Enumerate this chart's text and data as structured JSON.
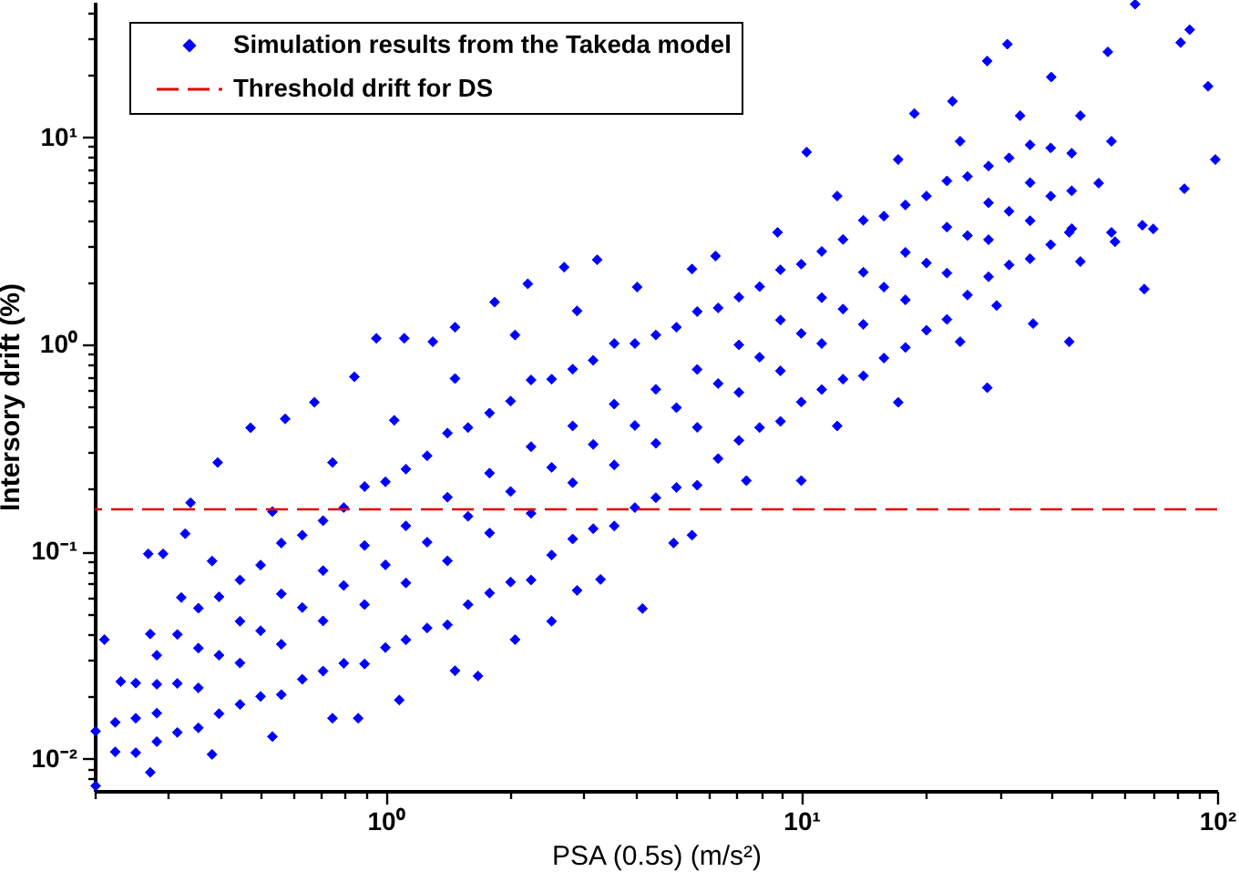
{
  "chart_data": {
    "type": "scatter",
    "xlabel": "PSA (0.5s) (m/s²)",
    "ylabel": "Intersory drift (%)",
    "log": "xy",
    "grid": false,
    "legend": "top left",
    "marker": "diamond",
    "xlim": [
      0.2,
      100
    ],
    "ylim": [
      0.007,
      45
    ],
    "xticks": [
      {
        "value": 0.2,
        "label": null
      },
      {
        "value": 0.3,
        "label": null
      },
      {
        "value": 0.4,
        "label": null
      },
      {
        "value": 0.5,
        "label": null
      },
      {
        "value": 0.6,
        "label": null
      },
      {
        "value": 0.7,
        "label": null
      },
      {
        "value": 0.8,
        "label": null
      },
      {
        "value": 0.9,
        "label": null
      },
      {
        "value": 1,
        "label": "10⁰"
      },
      {
        "value": 2,
        "label": null
      },
      {
        "value": 3,
        "label": null
      },
      {
        "value": 4,
        "label": null
      },
      {
        "value": 5,
        "label": null
      },
      {
        "value": 6,
        "label": null
      },
      {
        "value": 7,
        "label": null
      },
      {
        "value": 8,
        "label": null
      },
      {
        "value": 9,
        "label": null
      },
      {
        "value": 10,
        "label": "10¹"
      },
      {
        "value": 20,
        "label": null
      },
      {
        "value": 30,
        "label": null
      },
      {
        "value": 40,
        "label": null
      },
      {
        "value": 50,
        "label": null
      },
      {
        "value": 60,
        "label": null
      },
      {
        "value": 70,
        "label": null
      },
      {
        "value": 80,
        "label": null
      },
      {
        "value": 90,
        "label": null
      },
      {
        "value": 100,
        "label": "10²"
      }
    ],
    "yticks": [
      {
        "value": 0.008,
        "label": null
      },
      {
        "value": 0.009,
        "label": null
      },
      {
        "value": 0.01,
        "label": "10⁻²"
      },
      {
        "value": 0.02,
        "label": null
      },
      {
        "value": 0.03,
        "label": null
      },
      {
        "value": 0.04,
        "label": null
      },
      {
        "value": 0.05,
        "label": null
      },
      {
        "value": 0.06,
        "label": null
      },
      {
        "value": 0.07,
        "label": null
      },
      {
        "value": 0.08,
        "label": null
      },
      {
        "value": 0.09,
        "label": null
      },
      {
        "value": 0.1,
        "label": "10⁻¹"
      },
      {
        "value": 0.2,
        "label": null
      },
      {
        "value": 0.3,
        "label": null
      },
      {
        "value": 0.4,
        "label": null
      },
      {
        "value": 0.5,
        "label": null
      },
      {
        "value": 0.6,
        "label": null
      },
      {
        "value": 0.7,
        "label": null
      },
      {
        "value": 0.8,
        "label": null
      },
      {
        "value": 0.9,
        "label": null
      },
      {
        "value": 1,
        "label": "10⁰"
      },
      {
        "value": 2,
        "label": null
      },
      {
        "value": 3,
        "label": null
      },
      {
        "value": 4,
        "label": null
      },
      {
        "value": 5,
        "label": null
      },
      {
        "value": 6,
        "label": null
      },
      {
        "value": 7,
        "label": null
      },
      {
        "value": 8,
        "label": null
      },
      {
        "value": 9,
        "label": null
      },
      {
        "value": 10,
        "label": "10¹"
      },
      {
        "value": 20,
        "label": null
      },
      {
        "value": 30,
        "label": null
      },
      {
        "value": 40,
        "label": null
      }
    ],
    "series": [
      {
        "name": "Simulation results from the Takeda model",
        "color": "#0000ff",
        "x": [
          0.201,
          0.272,
          0.383,
          0.535,
          0.746,
          0.86,
          1.08,
          1.47,
          1.67,
          2.05,
          2.51,
          2.89,
          3.29,
          4.15,
          4.93,
          5.46,
          7.38,
          10.0,
          12.2,
          17.1,
          24.1,
          28.0,
          29.5,
          36.1,
          44.1,
          46.9,
          55.7,
          66.8,
          66.1,
          0.201,
          0.231,
          0.272,
          0.323,
          0.383,
          0.535,
          0.746,
          1.05,
          1.47,
          2.05,
          2.89,
          4.03,
          5.46,
          6.22,
          8.77,
          12.2,
          17.1,
          24.1,
          33.6,
          46.9,
          55.7,
          51.9,
          44.1,
          0.211,
          0.269,
          0.292,
          0.33,
          0.34,
          0.395,
          0.474,
          0.574,
          0.675,
          0.842,
          0.951,
          1.11,
          1.3,
          1.47,
          1.83,
          2.2,
          2.69,
          3.23,
          10.3,
          18.7,
          23.1,
          28.0,
          31.3,
          39.9,
          54.6,
          63.5,
          81.7,
          85.9,
          95.1,
          99.0,
          83.4,
          70.2,
          56.8,
          0.224,
          0.224,
          0.282,
          0.282,
          0.282,
          0.282,
          0.355,
          0.355,
          0.355,
          0.355,
          0.447,
          0.447,
          0.447,
          0.447,
          0.562,
          0.562,
          0.562,
          0.562,
          0.708,
          0.708,
          0.708,
          0.708,
          0.891,
          0.891,
          0.891,
          0.891,
          1.12,
          1.12,
          1.12,
          1.12,
          1.41,
          1.41,
          1.41,
          1.41,
          1.78,
          1.78,
          1.78,
          1.78,
          2.24,
          2.24,
          2.24,
          2.24,
          2.82,
          2.82,
          2.82,
          2.82,
          3.55,
          3.55,
          3.55,
          3.55,
          4.47,
          4.47,
          4.47,
          4.47,
          5.62,
          5.62,
          5.62,
          5.62,
          7.08,
          7.08,
          7.08,
          7.08,
          8.91,
          8.91,
          8.91,
          8.91,
          11.2,
          11.2,
          11.2,
          11.2,
          14.1,
          14.1,
          14.1,
          14.1,
          17.8,
          17.8,
          17.8,
          17.8,
          22.4,
          22.4,
          22.4,
          22.4,
          28.2,
          28.2,
          28.2,
          28.2,
          35.5,
          35.5,
          35.5,
          35.5,
          44.7,
          44.7,
          44.7,
          0.251,
          0.316,
          0.398,
          0.501,
          0.631,
          0.794,
          1.0,
          1.26,
          1.58,
          2.0,
          2.51,
          3.16,
          3.98,
          5.01,
          6.31,
          7.94,
          10.0,
          12.6,
          15.8,
          20.0,
          25.1,
          31.6,
          39.8,
          0.251,
          0.251,
          0.316,
          0.316,
          0.398,
          0.398,
          0.501,
          0.501,
          0.631,
          0.631,
          0.794,
          0.794,
          1.0,
          1.0,
          1.26,
          1.26,
          1.58,
          1.58,
          2.0,
          2.0,
          2.51,
          2.51,
          3.16,
          3.16,
          3.98,
          3.98,
          5.01,
          5.01,
          6.31,
          6.31,
          7.94,
          7.94,
          10.0,
          10.0,
          12.6,
          12.6,
          15.8,
          15.8,
          20.0,
          20.0,
          25.1,
          25.1,
          31.6,
          31.6,
          39.8,
          39.8
        ],
        "values": [
          0.0074,
          0.0086,
          0.0105,
          0.0128,
          0.0157,
          0.0157,
          0.0192,
          0.0266,
          0.0251,
          0.0376,
          0.0461,
          0.065,
          0.0734,
          0.0531,
          0.11,
          0.12,
          0.22,
          0.22,
          0.404,
          0.525,
          1.03,
          0.618,
          1.54,
          1.26,
          1.03,
          2.51,
          3.47,
          1.85,
          3.76,
          0.0136,
          0.0236,
          0.04,
          0.06,
          0.09,
          0.156,
          0.269,
          0.43,
          0.684,
          1.11,
          1.45,
          1.89,
          2.31,
          2.67,
          3.47,
          5.2,
          7.8,
          9.55,
          12.7,
          12.7,
          9.55,
          6.0,
          3.47,
          0.0376,
          0.0975,
          0.0975,
          0.122,
          0.172,
          0.269,
          0.396,
          0.437,
          0.526,
          0.698,
          1.07,
          1.07,
          1.03,
          1.21,
          1.6,
          1.96,
          2.36,
          2.56,
          8.47,
          13.0,
          14.9,
          23.3,
          28.1,
          19.5,
          25.8,
          43.8,
          28.6,
          33.0,
          17.6,
          7.8,
          5.64,
          3.61,
          3.13,
          0.0108,
          0.015,
          0.0121,
          0.0166,
          0.0229,
          0.0316,
          0.0141,
          0.022,
          0.0342,
          0.0533,
          0.0183,
          0.029,
          0.0461,
          0.0729,
          0.0204,
          0.0357,
          0.0625,
          0.11,
          0.0265,
          0.0463,
          0.0809,
          0.141,
          0.0287,
          0.0555,
          0.107,
          0.206,
          0.0375,
          0.0706,
          0.133,
          0.25,
          0.0443,
          0.0902,
          0.183,
          0.373,
          0.0631,
          0.123,
          0.239,
          0.466,
          0.0729,
          0.153,
          0.321,
          0.673,
          0.115,
          0.215,
          0.404,
          0.759,
          0.133,
          0.262,
          0.515,
          1.01,
          0.182,
          0.333,
          0.607,
          1.11,
          0.209,
          0.398,
          0.757,
          1.44,
          0.344,
          0.586,
          0.995,
          1.69,
          0.425,
          0.745,
          1.31,
          2.29,
          0.605,
          1.01,
          1.68,
          2.81,
          0.705,
          1.25,
          2.23,
          3.97,
          0.966,
          1.64,
          2.78,
          4.71,
          1.32,
          2.21,
          3.68,
          6.15,
          2.12,
          3.2,
          4.82,
          7.26,
          2.59,
          3.95,
          6.03,
          9.18,
          3.62,
          5.51,
          8.36,
          0.0157,
          0.0231,
          0.0316,
          0.0415,
          0.0537,
          0.0686,
          0.0863,
          0.111,
          0.148,
          0.195,
          0.255,
          0.329,
          0.406,
          0.495,
          0.647,
          0.867,
          1.13,
          1.48,
          1.89,
          2.47,
          3.35,
          4.39,
          5.19,
          0.0107,
          0.0232,
          0.0134,
          0.0398,
          0.0165,
          0.0605,
          0.02,
          0.0861,
          0.0242,
          0.12,
          0.0289,
          0.163,
          0.0344,
          0.217,
          0.0428,
          0.29,
          0.0555,
          0.397,
          0.0713,
          0.532,
          0.0962,
          0.679,
          0.129,
          0.838,
          0.163,
          1.01,
          0.204,
          1.21,
          0.281,
          1.5,
          0.397,
          1.9,
          0.527,
          2.44,
          0.679,
          3.21,
          0.859,
          4.16,
          1.17,
          5.2,
          1.73,
          6.46,
          2.42,
          7.94,
          3.03,
          8.87
        ]
      }
    ],
    "ref_lines": [
      {
        "axis": "y",
        "value": 0.16,
        "label": "Threshold drift for DS",
        "color": "#e00000",
        "line_style": "dashed"
      }
    ]
  }
}
